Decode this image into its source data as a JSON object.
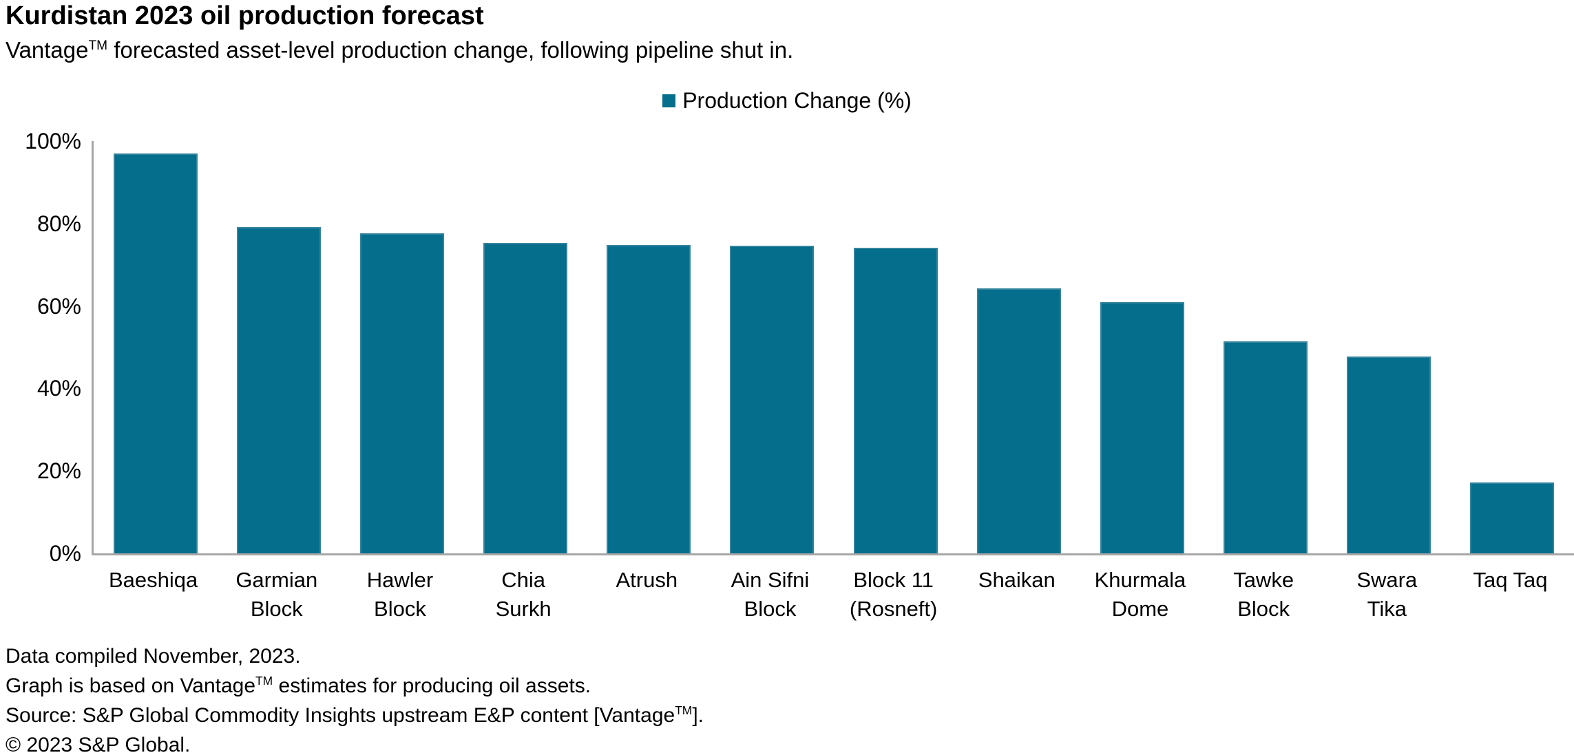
{
  "header": {
    "title": "Kurdistan 2023 oil production forecast",
    "subtitle": {
      "pre": "Vantage",
      "sup": "TM",
      "post": " forecasted asset-level production change, following pipeline shut in."
    }
  },
  "legend": {
    "label": "Production Change (%)",
    "marker_color": "#046E8C"
  },
  "chart_data": {
    "type": "bar",
    "title": "Kurdistan 2023 oil production forecast",
    "subtitle": "Vantage(TM) forecasted asset-level production change, following pipeline shut in.",
    "series_name": "Production Change (%)",
    "categories": [
      "Baeshiqa",
      "Garmian Block",
      "Hawler Block",
      "Chia Surkh",
      "Atrush",
      "Ain Sifni Block",
      "Block 11 (Rosneft)",
      "Shaikan",
      "Khurmala Dome",
      "Tawke Block",
      "Swara Tika",
      "Taq Taq"
    ],
    "labels_display": [
      "Baeshiqa",
      "Garmian\nBlock",
      "Hawler\nBlock",
      "Chia\nSurkh",
      "Atrush",
      "Ain Sifni\nBlock",
      "Block 11\n(Rosneft)",
      "Shaikan",
      "Khurmala\nDome",
      "Tawke\nBlock",
      "Swara\nTika",
      "Taq Taq"
    ],
    "values": [
      97.0,
      79.2,
      77.6,
      75.3,
      74.8,
      74.6,
      74.1,
      64.3,
      61.0,
      51.5,
      47.7,
      17.2
    ],
    "xlabel": "",
    "ylabel": "",
    "ylim": [
      0,
      100
    ],
    "ytick_labels": [
      "100%",
      "80%",
      "60%",
      "40%",
      "20%",
      "0%"
    ],
    "grid": false,
    "legend_position": "top-center",
    "bar_color": "#046E8C",
    "bar_edge_color": "#35849E",
    "axis_color": "#A6A6A6"
  },
  "footnotes": {
    "line1": "Data compiled November, 2023.",
    "line2": {
      "pre": "Graph is based on Vantage",
      "sup": "TM",
      "post": " estimates for producing oil assets."
    },
    "line3": {
      "pre": "Source: S&P Global Commodity Insights upstream E&P content [Vantage",
      "sup": "TM",
      "post": "]."
    },
    "line4": "© 2023 S&P Global."
  }
}
